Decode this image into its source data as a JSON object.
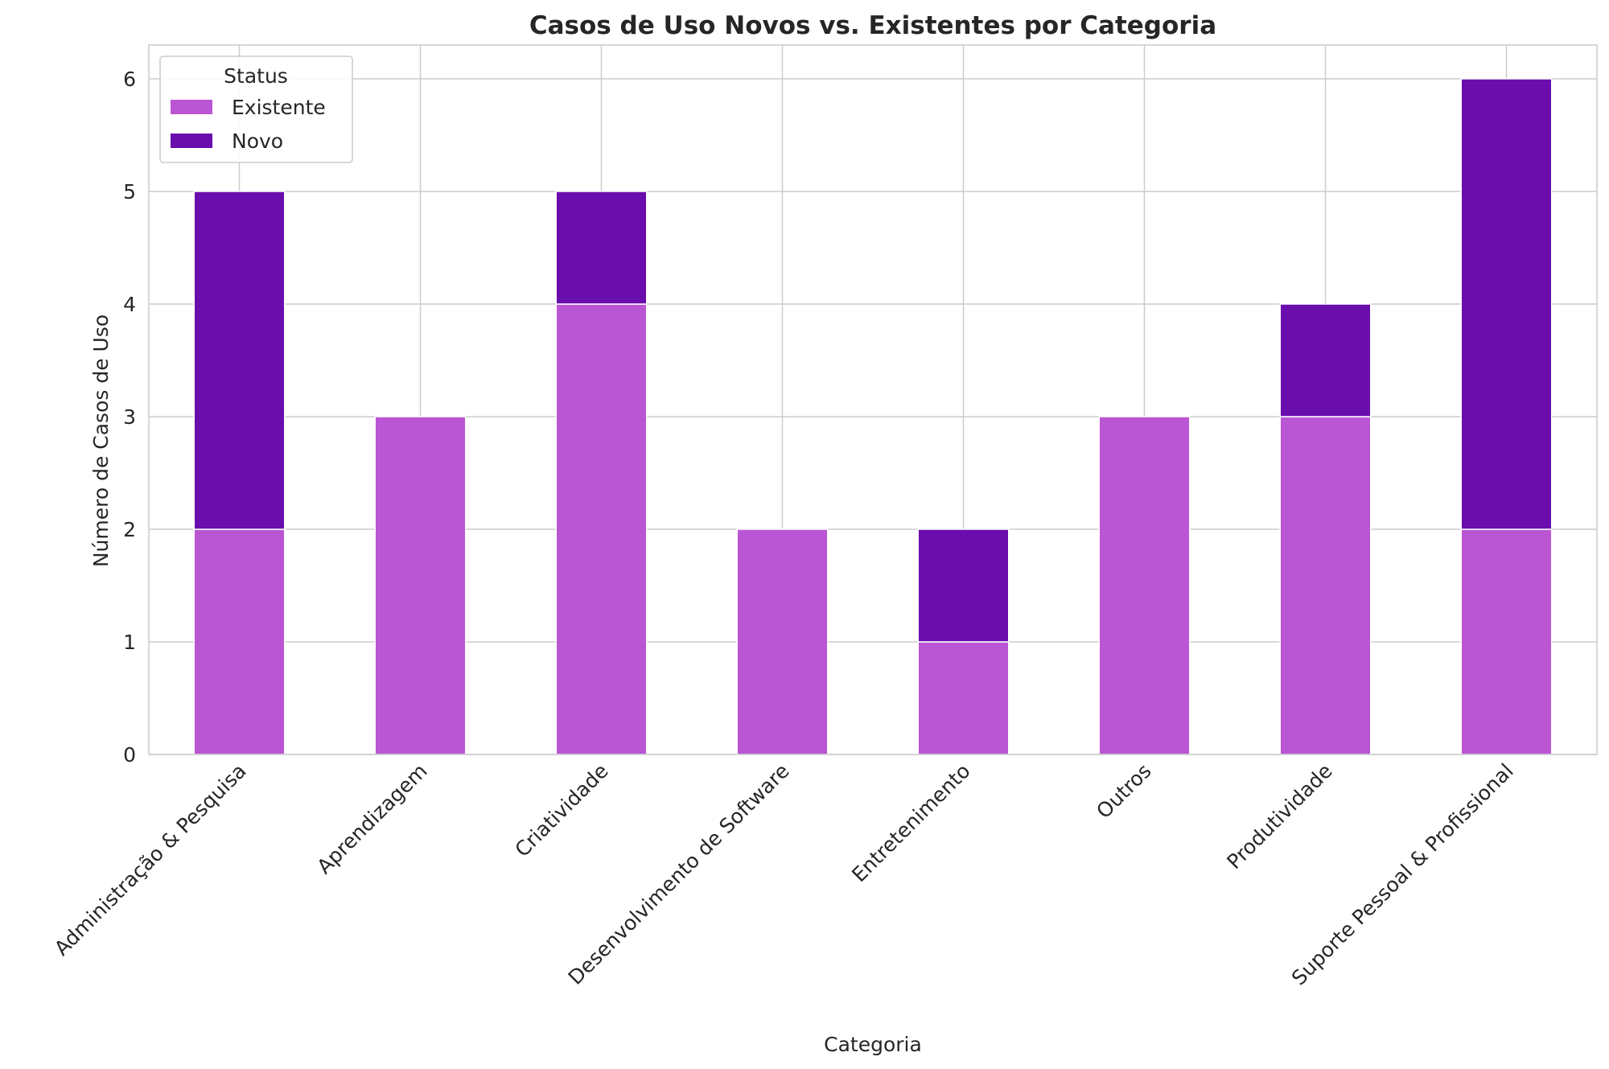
{
  "chart_data": {
    "type": "bar",
    "stacked": true,
    "title": "Casos de Uso Novos vs. Existentes por Categoria",
    "xlabel": "Categoria",
    "ylabel": "Número de Casos de Uso",
    "ylim": [
      0,
      6.3
    ],
    "yticks": [
      "0",
      "1",
      "2",
      "3",
      "4",
      "5",
      "6"
    ],
    "grid": true,
    "categories": [
      "Administração & Pesquisa",
      "Aprendizagem",
      "Criatividade",
      "Desenvolvimento de Software",
      "Entretenimento",
      "Outros",
      "Produtividade",
      "Suporte Pessoal & Profissional"
    ],
    "series": [
      {
        "name": "Existente",
        "color": "#ba55d3",
        "values": [
          2,
          3,
          4,
          2,
          1,
          3,
          3,
          2
        ]
      },
      {
        "name": "Novo",
        "color": "#6a0dad",
        "values": [
          3,
          0,
          1,
          0,
          1,
          0,
          1,
          4
        ]
      }
    ],
    "legend": {
      "title": "Status",
      "position": "top-left"
    }
  }
}
